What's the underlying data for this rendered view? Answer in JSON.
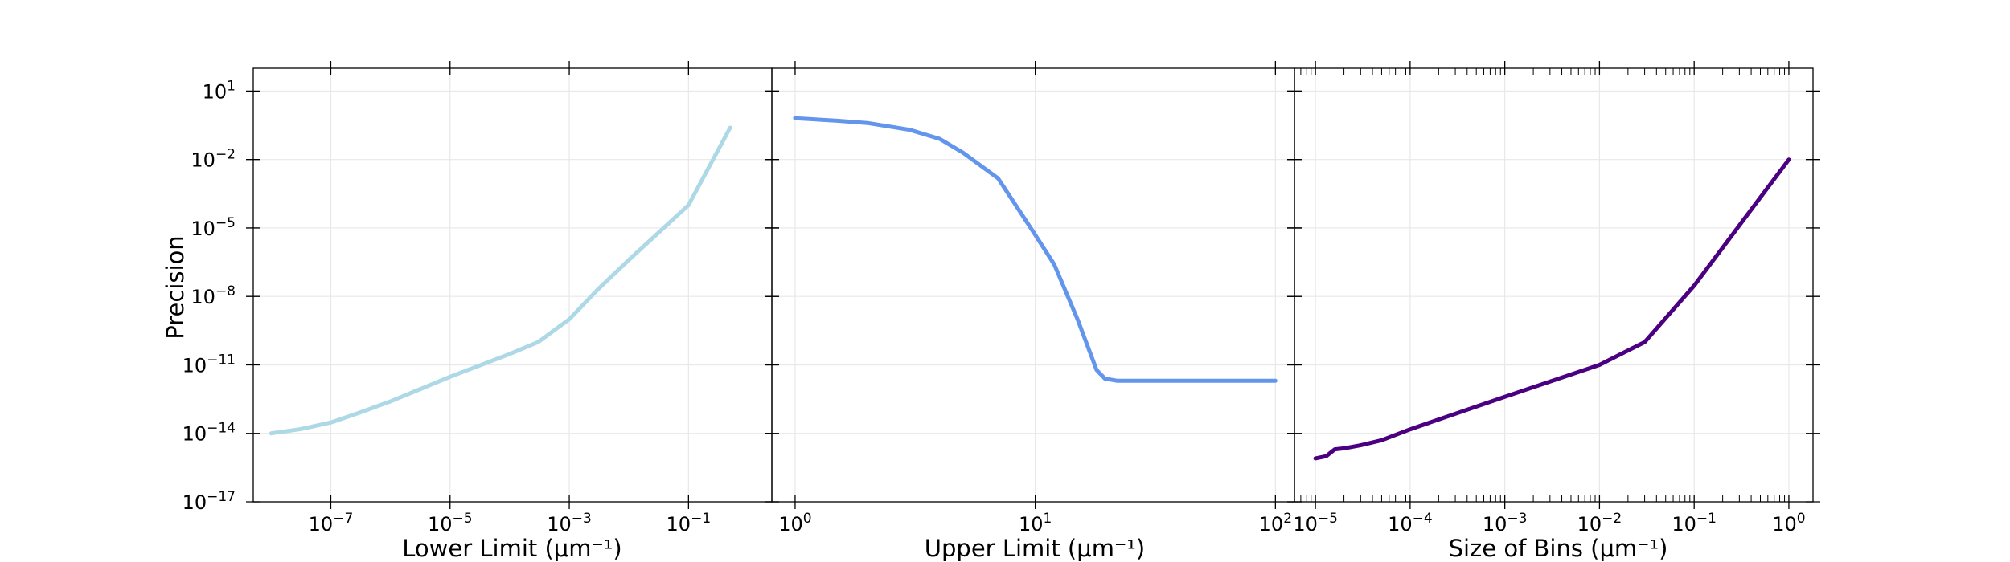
{
  "chart_data": [
    {
      "type": "line",
      "xlabel": "Lower Limit (μm⁻¹)",
      "ylabel": "Precision",
      "xscale": "log",
      "yscale": "log",
      "xlim": [
        5e-09,
        2.5
      ],
      "ylim": [
        1e-17,
        100
      ],
      "grid": true,
      "xticks": [
        {
          "v": 1e-07,
          "b": "10",
          "e": "−7"
        },
        {
          "v": 1e-05,
          "b": "10",
          "e": "−5"
        },
        {
          "v": 0.001,
          "b": "10",
          "e": "−3"
        },
        {
          "v": 0.1,
          "b": "10",
          "e": "−1"
        }
      ],
      "yticks": [
        {
          "v": 1e-17,
          "b": "10",
          "e": "−17"
        },
        {
          "v": 1e-14,
          "b": "10",
          "e": "−14"
        },
        {
          "v": 1e-11,
          "b": "10",
          "e": "−11"
        },
        {
          "v": 1e-08,
          "b": "10",
          "e": "−8"
        },
        {
          "v": 1e-05,
          "b": "10",
          "e": "−5"
        },
        {
          "v": 0.01,
          "b": "10",
          "e": "−2"
        },
        {
          "v": 10,
          "b": "10",
          "e": "1"
        }
      ],
      "series": [
        {
          "color": "#add8e6",
          "x": [
            1e-08,
            3e-08,
            1e-07,
            3e-07,
            1e-06,
            1e-05,
            0.0001,
            0.0003,
            0.001,
            0.003,
            0.01,
            0.1,
            0.5
          ],
          "y": [
            1e-14,
            1.5e-14,
            3e-14,
            8e-14,
            2.5e-13,
            3e-12,
            3e-11,
            1e-10,
            1e-09,
            2e-08,
            4e-07,
            0.0001,
            0.25
          ]
        }
      ]
    },
    {
      "type": "line",
      "xlabel": "Upper Limit (μm⁻¹)",
      "ylabel": "",
      "xscale": "log",
      "yscale": "log",
      "xlim": [
        0.8,
        120
      ],
      "ylim": [
        1e-17,
        100
      ],
      "grid": true,
      "xticks": [
        {
          "v": 1,
          "b": "10",
          "e": "0"
        },
        {
          "v": 10,
          "b": "10",
          "e": "1"
        },
        {
          "v": 100,
          "b": "10",
          "e": "2"
        }
      ],
      "yticks": [
        {
          "v": 1e-17
        },
        {
          "v": 1e-14
        },
        {
          "v": 1e-11
        },
        {
          "v": 1e-08
        },
        {
          "v": 1e-05
        },
        {
          "v": 0.01
        },
        {
          "v": 10
        }
      ],
      "series": [
        {
          "color": "#6495ed",
          "x": [
            1,
            1.5,
            2,
            3,
            4,
            5,
            7,
            10,
            12,
            15,
            18,
            19.5,
            22,
            30,
            50,
            100
          ],
          "y": [
            0.65,
            0.5,
            0.4,
            0.2,
            0.08,
            0.02,
            0.0015,
            5e-06,
            2.5e-07,
            1e-09,
            6e-12,
            2.5e-12,
            2e-12,
            2e-12,
            2e-12,
            2e-12
          ]
        }
      ]
    },
    {
      "type": "line",
      "xlabel": "Size of Bins (μm⁻¹)",
      "ylabel": "",
      "xscale": "log",
      "yscale": "log",
      "xlim": [
        6e-06,
        1.8
      ],
      "ylim": [
        1e-17,
        100
      ],
      "grid": true,
      "xticks": [
        {
          "v": 1e-05,
          "b": "10",
          "e": "−5"
        },
        {
          "v": 0.0001,
          "b": "10",
          "e": "−4"
        },
        {
          "v": 0.001,
          "b": "10",
          "e": "−3"
        },
        {
          "v": 0.01,
          "b": "10",
          "e": "−2"
        },
        {
          "v": 0.1,
          "b": "10",
          "e": "−1"
        },
        {
          "v": 1,
          "b": "10",
          "e": "0"
        }
      ],
      "yticks": [
        {
          "v": 1e-17
        },
        {
          "v": 1e-14
        },
        {
          "v": 1e-11
        },
        {
          "v": 1e-08
        },
        {
          "v": 1e-05
        },
        {
          "v": 0.01
        },
        {
          "v": 10
        }
      ],
      "series": [
        {
          "color": "#4b0082",
          "x": [
            1e-05,
            1.3e-05,
            1.6e-05,
            2e-05,
            3e-05,
            5e-05,
            0.0001,
            0.001,
            0.01,
            0.03,
            0.1,
            1
          ],
          "y": [
            8e-16,
            1e-15,
            2e-15,
            2.2e-15,
            3e-15,
            5e-15,
            1.5e-14,
            4e-13,
            1e-11,
            1e-10,
            3e-08,
            0.01
          ]
        }
      ]
    }
  ]
}
